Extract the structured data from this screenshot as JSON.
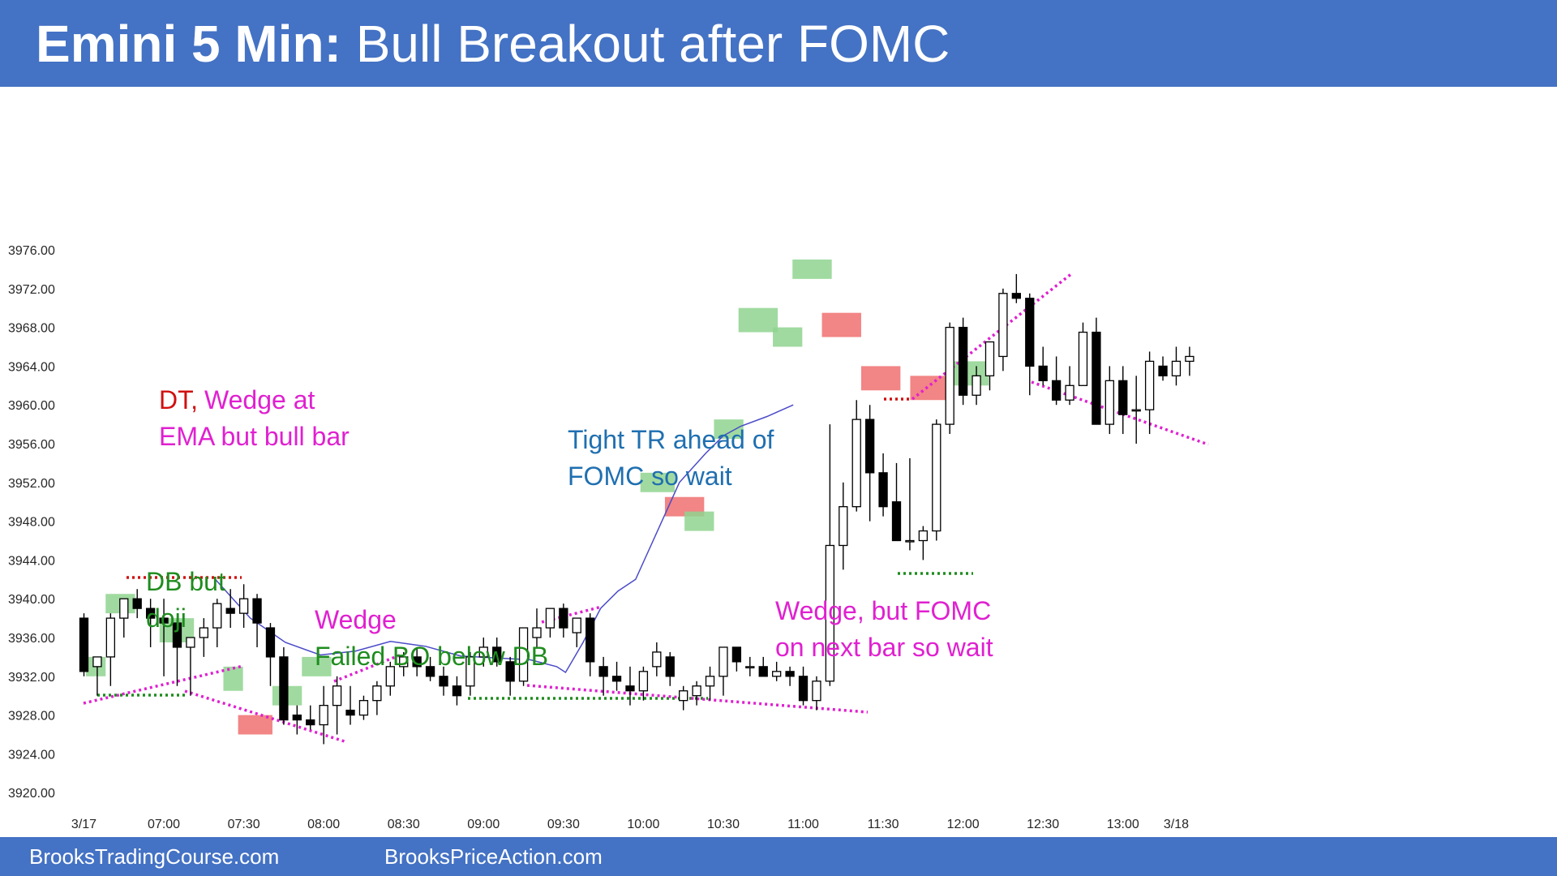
{
  "header": {
    "title_bold": "Emini 5 Min:",
    "title_rest": " Bull Breakout after FOMC"
  },
  "footer": {
    "left": "BrooksTradingCourse.com",
    "right": "BrooksPriceAction.com"
  },
  "colors": {
    "banner": "#4472C4",
    "bull_signal": "#8FD48F",
    "bear_signal": "#F07070",
    "ema": "#4A4AC8",
    "magenta": "#E020D0",
    "green": "#1E8C1E",
    "red": "#D01010",
    "blue": "#1F6FB0"
  },
  "chart_data": {
    "type": "candlestick",
    "ylim": [
      3918,
      3994
    ],
    "yticks": [
      "3976.00",
      "3972.00",
      "3968.00",
      "3964.00",
      "3960.00",
      "3956.00",
      "3952.00",
      "3948.00",
      "3944.00",
      "3940.00",
      "3936.00",
      "3932.00",
      "3928.00",
      "3924.00",
      "3920.00"
    ],
    "xticks": [
      {
        "bar": 0,
        "label": "3/17"
      },
      {
        "bar": 6,
        "label": "07:00"
      },
      {
        "bar": 12,
        "label": "07:30"
      },
      {
        "bar": 18,
        "label": "08:00"
      },
      {
        "bar": 24,
        "label": "08:30"
      },
      {
        "bar": 30,
        "label": "09:00"
      },
      {
        "bar": 36,
        "label": "09:30"
      },
      {
        "bar": 42,
        "label": "10:00"
      },
      {
        "bar": 48,
        "label": "10:30"
      },
      {
        "bar": 54,
        "label": "11:00"
      },
      {
        "bar": 60,
        "label": "11:30"
      },
      {
        "bar": 66,
        "label": "12:00"
      },
      {
        "bar": 72,
        "label": "12:30"
      },
      {
        "bar": 78,
        "label": "13:00"
      },
      {
        "bar": 82,
        "label": "3/18"
      }
    ],
    "bars": [
      [
        3938,
        3938.5,
        3932,
        3932.5
      ],
      [
        3933,
        3934,
        3930,
        3934
      ],
      [
        3934,
        3938.5,
        3931,
        3938
      ],
      [
        3938,
        3940,
        3936,
        3940
      ],
      [
        3940,
        3941,
        3938,
        3939
      ],
      [
        3939,
        3940,
        3935,
        3938
      ],
      [
        3938,
        3940,
        3932,
        3937.5
      ],
      [
        3937.5,
        3938,
        3931,
        3935
      ],
      [
        3935,
        3936,
        3930,
        3936
      ],
      [
        3936,
        3938,
        3934,
        3937
      ],
      [
        3937,
        3940,
        3935,
        3939.5
      ],
      [
        3939,
        3941,
        3937,
        3938.5
      ],
      [
        3938.5,
        3941.5,
        3937,
        3940
      ],
      [
        3940,
        3940.5,
        3935,
        3937.5
      ],
      [
        3937,
        3937.5,
        3931,
        3934
      ],
      [
        3934,
        3935,
        3927,
        3927.5
      ],
      [
        3928,
        3929,
        3926,
        3927.5
      ],
      [
        3927.5,
        3929,
        3926.5,
        3927
      ],
      [
        3927,
        3931,
        3925,
        3929
      ],
      [
        3929,
        3932,
        3926,
        3931
      ],
      [
        3928.5,
        3931,
        3927,
        3928
      ],
      [
        3928,
        3930,
        3927.5,
        3929.5
      ],
      [
        3929.5,
        3931.5,
        3928,
        3931
      ],
      [
        3931,
        3933.5,
        3930,
        3933
      ],
      [
        3933,
        3934.5,
        3932,
        3934
      ],
      [
        3934,
        3935,
        3932,
        3933
      ],
      [
        3933,
        3934,
        3931.5,
        3932
      ],
      [
        3932,
        3933,
        3930,
        3931
      ],
      [
        3931,
        3932,
        3929,
        3930
      ],
      [
        3931,
        3934.5,
        3930,
        3934
      ],
      [
        3934,
        3936,
        3933,
        3935
      ],
      [
        3935,
        3936,
        3933,
        3933.5
      ],
      [
        3933.5,
        3934,
        3930,
        3931.5
      ],
      [
        3931.5,
        3937,
        3931,
        3937
      ],
      [
        3936,
        3939,
        3935,
        3937
      ],
      [
        3937,
        3939,
        3936,
        3939
      ],
      [
        3939,
        3939.5,
        3936,
        3937
      ],
      [
        3936.5,
        3938,
        3935,
        3938
      ],
      [
        3938,
        3938.5,
        3932,
        3933.5
      ],
      [
        3933,
        3934,
        3930,
        3932
      ],
      [
        3932,
        3933.5,
        3930.5,
        3931.5
      ],
      [
        3931,
        3933,
        3929,
        3930.5
      ],
      [
        3930.5,
        3933,
        3929.5,
        3932.5
      ],
      [
        3933,
        3935.5,
        3932,
        3934.5
      ],
      [
        3934,
        3934.5,
        3931,
        3932
      ],
      [
        3929.5,
        3931,
        3928.5,
        3930.5
      ],
      [
        3930,
        3931.5,
        3929,
        3931
      ],
      [
        3931,
        3933,
        3929.5,
        3932
      ],
      [
        3932,
        3935,
        3930,
        3935
      ],
      [
        3935,
        3935,
        3932.5,
        3933.5
      ],
      [
        3933,
        3934,
        3932,
        3933
      ],
      [
        3933,
        3934,
        3932,
        3932
      ],
      [
        3932,
        3933.5,
        3931.5,
        3932.5
      ],
      [
        3932.5,
        3933,
        3931,
        3932
      ],
      [
        3932,
        3933,
        3929,
        3929.5
      ],
      [
        3929.5,
        3932,
        3928.5,
        3931.5
      ],
      [
        3931.5,
        3958,
        3931,
        3945.5
      ],
      [
        3945.5,
        3952,
        3943,
        3949.5
      ],
      [
        3949.5,
        3960.5,
        3949,
        3958.5
      ],
      [
        3958.5,
        3960,
        3948,
        3953
      ],
      [
        3953,
        3955,
        3948.5,
        3949.5
      ],
      [
        3950,
        3954,
        3948,
        3946
      ],
      [
        3946,
        3954.5,
        3945,
        3946
      ],
      [
        3946,
        3947.5,
        3944,
        3947
      ],
      [
        3947,
        3958.5,
        3946,
        3958
      ],
      [
        3958,
        3968.5,
        3957,
        3968
      ],
      [
        3968,
        3969,
        3960,
        3961
      ],
      [
        3961,
        3964,
        3960,
        3963
      ],
      [
        3963,
        3966,
        3961.5,
        3966.5
      ],
      [
        3965,
        3972,
        3963.5,
        3971.5
      ],
      [
        3971.5,
        3973.5,
        3970.5,
        3971
      ],
      [
        3971,
        3971.5,
        3961,
        3964
      ],
      [
        3964,
        3966,
        3962,
        3962.5
      ],
      [
        3962.5,
        3965,
        3960,
        3960.5
      ],
      [
        3960.5,
        3964,
        3960,
        3962
      ],
      [
        3962,
        3968.5,
        3962,
        3967.5
      ],
      [
        3967.5,
        3969,
        3960,
        3958
      ],
      [
        3958,
        3964,
        3957,
        3962.5
      ],
      [
        3962.5,
        3964,
        3957,
        3959
      ],
      [
        3959.5,
        3963,
        3956,
        3959.5
      ],
      [
        3959.5,
        3965.5,
        3957,
        3964.5
      ],
      [
        3964,
        3965,
        3962.5,
        3963
      ],
      [
        3963,
        3966,
        3962,
        3964.5
      ],
      [
        3964.5,
        3966,
        3963,
        3965
      ]
    ],
    "ema": [
      [
        15,
        3942
      ],
      [
        19,
        3938
      ],
      [
        23,
        3935.5
      ],
      [
        27,
        3934.2
      ],
      [
        31,
        3934.6
      ],
      [
        35,
        3935.6
      ],
      [
        39,
        3935.1
      ],
      [
        43,
        3934.1
      ],
      [
        47,
        3933.9
      ],
      [
        51,
        3933.7
      ],
      [
        54,
        3933
      ],
      [
        55,
        3932.4
      ],
      [
        57,
        3935.5
      ],
      [
        59,
        3939
      ],
      [
        61,
        3940.8
      ],
      [
        63,
        3942
      ],
      [
        65,
        3946
      ],
      [
        68,
        3952
      ],
      [
        71,
        3955
      ],
      [
        73,
        3956.8
      ],
      [
        75,
        3957.8
      ],
      [
        78,
        3958.8
      ],
      [
        81,
        3960
      ]
    ],
    "annotations": [
      {
        "id": "dt",
        "text": "DT,",
        "color": "red"
      },
      {
        "id": "wedge1",
        "text": "Wedge at",
        "color": "magenta"
      },
      {
        "id": "wedge1b",
        "text": "EMA but bull bar",
        "color": "magenta"
      },
      {
        "id": "db1",
        "text": "DB but",
        "color": "green"
      },
      {
        "id": "db2",
        "text": "doji",
        "color": "green"
      },
      {
        "id": "wedge2",
        "text": "Wedge",
        "color": "magenta"
      },
      {
        "id": "failed",
        "text": "Failed BO below DB",
        "color": "green"
      },
      {
        "id": "ttr1",
        "text": "Tight TR ahead of",
        "color": "blue"
      },
      {
        "id": "ttr2",
        "text": "FOMC so wait",
        "color": "blue"
      },
      {
        "id": "wedge3",
        "text": "Wedge, but FOMC",
        "color": "magenta"
      },
      {
        "id": "wedge3b",
        "text": "on next bar so wait",
        "color": "magenta"
      }
    ]
  }
}
